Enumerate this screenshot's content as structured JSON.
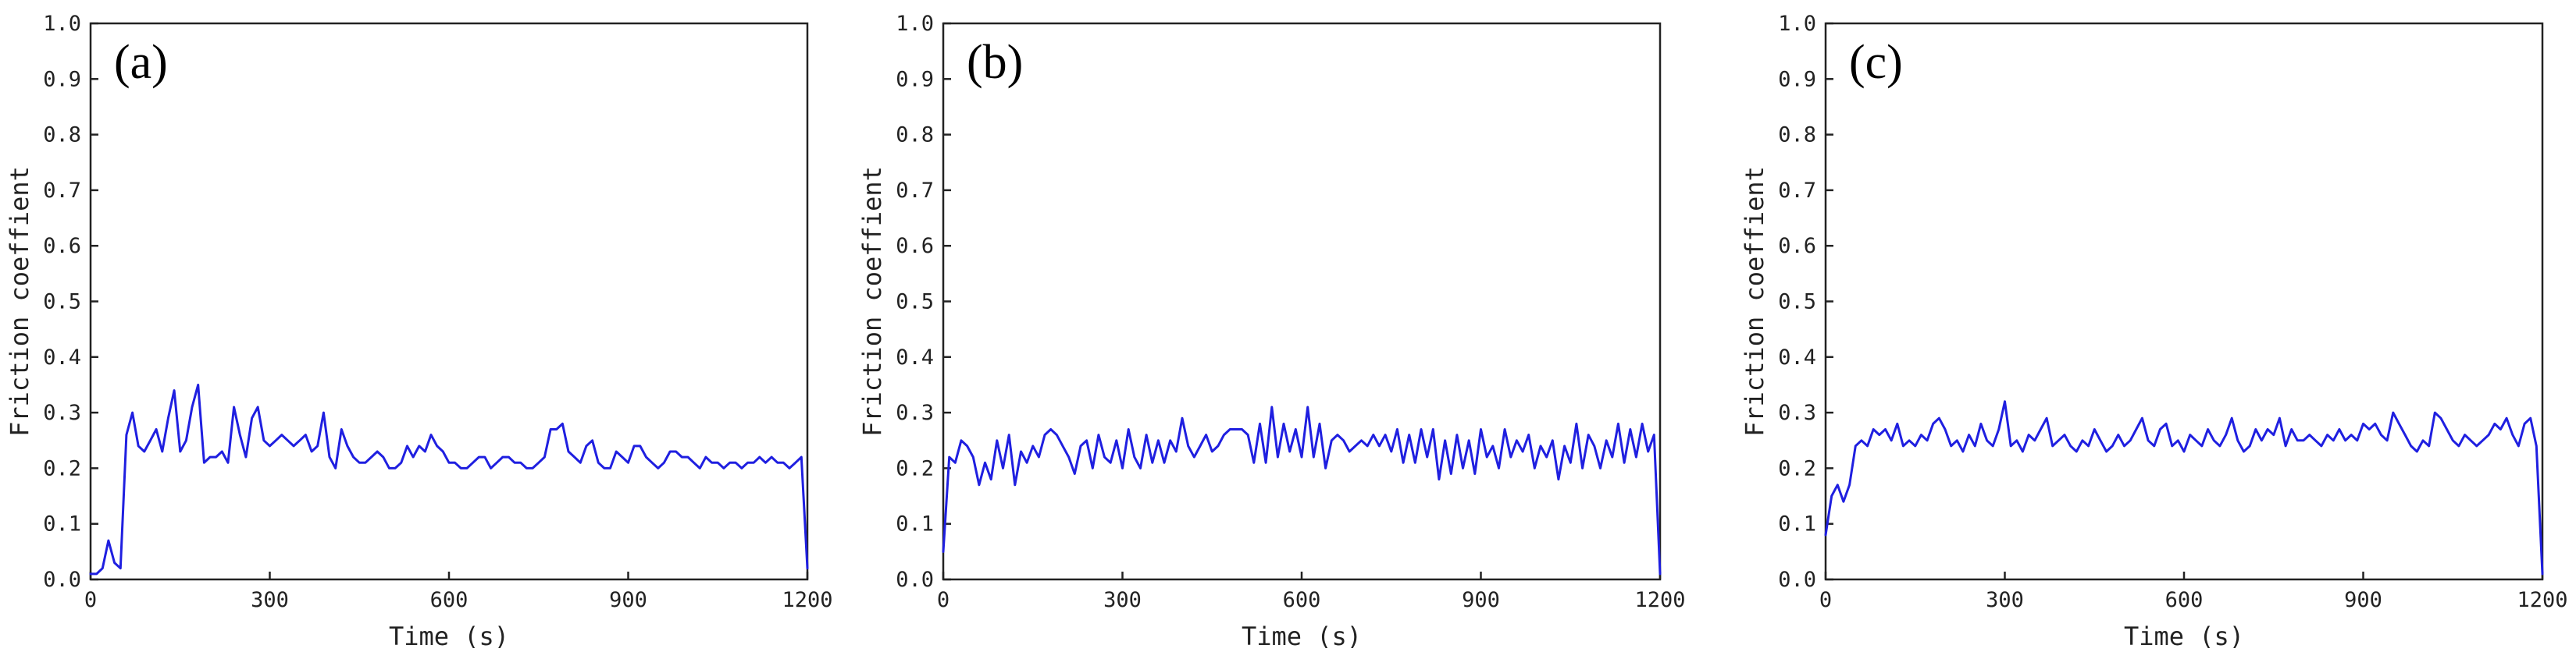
{
  "figure": {
    "line_color": "#1f1fe0",
    "axis_color": "#222222"
  },
  "chart_data": [
    {
      "type": "line",
      "panel_label": "(a)",
      "xlabel": "Time (s)",
      "ylabel": "Friction coeffient",
      "xlim": [
        0,
        1200
      ],
      "ylim": [
        0,
        1.0
      ],
      "x_ticks": [
        0,
        300,
        600,
        900,
        1200
      ],
      "y_ticks": [
        0.0,
        0.1,
        0.2,
        0.3,
        0.4,
        0.5,
        0.6,
        0.7,
        0.8,
        0.9,
        1.0
      ],
      "grid": false,
      "series": [
        {
          "x": [
            0,
            10,
            20,
            30,
            40,
            50,
            60,
            70,
            80,
            90,
            100,
            110,
            120,
            130,
            140,
            150,
            160,
            170,
            180,
            190,
            200,
            210,
            220,
            230,
            240,
            250,
            260,
            270,
            280,
            290,
            300,
            310,
            320,
            330,
            340,
            350,
            360,
            370,
            380,
            390,
            400,
            410,
            420,
            430,
            440,
            450,
            460,
            470,
            480,
            490,
            500,
            510,
            520,
            530,
            540,
            550,
            560,
            570,
            580,
            590,
            600,
            610,
            620,
            630,
            640,
            650,
            660,
            670,
            680,
            690,
            700,
            710,
            720,
            730,
            740,
            750,
            760,
            770,
            780,
            790,
            800,
            810,
            820,
            830,
            840,
            850,
            860,
            870,
            880,
            890,
            900,
            910,
            920,
            930,
            940,
            950,
            960,
            970,
            980,
            990,
            1000,
            1010,
            1020,
            1030,
            1040,
            1050,
            1060,
            1070,
            1080,
            1090,
            1100,
            1110,
            1120,
            1130,
            1140,
            1150,
            1160,
            1170,
            1180,
            1190,
            1200
          ],
          "y": [
            0.01,
            0.01,
            0.02,
            0.07,
            0.03,
            0.02,
            0.26,
            0.3,
            0.24,
            0.23,
            0.25,
            0.27,
            0.23,
            0.29,
            0.34,
            0.23,
            0.25,
            0.31,
            0.35,
            0.21,
            0.22,
            0.22,
            0.23,
            0.21,
            0.31,
            0.26,
            0.22,
            0.29,
            0.31,
            0.25,
            0.24,
            0.25,
            0.26,
            0.25,
            0.24,
            0.25,
            0.26,
            0.23,
            0.24,
            0.3,
            0.22,
            0.2,
            0.27,
            0.24,
            0.22,
            0.21,
            0.21,
            0.22,
            0.23,
            0.22,
            0.2,
            0.2,
            0.21,
            0.24,
            0.22,
            0.24,
            0.23,
            0.26,
            0.24,
            0.23,
            0.21,
            0.21,
            0.2,
            0.2,
            0.21,
            0.22,
            0.22,
            0.2,
            0.21,
            0.22,
            0.22,
            0.21,
            0.21,
            0.2,
            0.2,
            0.21,
            0.22,
            0.27,
            0.27,
            0.28,
            0.23,
            0.22,
            0.21,
            0.24,
            0.25,
            0.21,
            0.2,
            0.2,
            0.23,
            0.22,
            0.21,
            0.24,
            0.24,
            0.22,
            0.21,
            0.2,
            0.21,
            0.23,
            0.23,
            0.22,
            0.22,
            0.21,
            0.2,
            0.22,
            0.21,
            0.21,
            0.2,
            0.21,
            0.21,
            0.2,
            0.21,
            0.21,
            0.22,
            0.21,
            0.22,
            0.21,
            0.21,
            0.2,
            0.21,
            0.22,
            0.02
          ]
        }
      ]
    },
    {
      "type": "line",
      "panel_label": "(b)",
      "xlabel": "Time (s)",
      "ylabel": "Friction coeffient",
      "xlim": [
        0,
        1200
      ],
      "ylim": [
        0,
        1.0
      ],
      "x_ticks": [
        0,
        300,
        600,
        900,
        1200
      ],
      "y_ticks": [
        0.0,
        0.1,
        0.2,
        0.3,
        0.4,
        0.5,
        0.6,
        0.7,
        0.8,
        0.9,
        1.0
      ],
      "grid": false,
      "series": [
        {
          "x": [
            0,
            10,
            20,
            30,
            40,
            50,
            60,
            70,
            80,
            90,
            100,
            110,
            120,
            130,
            140,
            150,
            160,
            170,
            180,
            190,
            200,
            210,
            220,
            230,
            240,
            250,
            260,
            270,
            280,
            290,
            300,
            310,
            320,
            330,
            340,
            350,
            360,
            370,
            380,
            390,
            400,
            410,
            420,
            430,
            440,
            450,
            460,
            470,
            480,
            490,
            500,
            510,
            520,
            530,
            540,
            550,
            560,
            570,
            580,
            590,
            600,
            610,
            620,
            630,
            640,
            650,
            660,
            670,
            680,
            690,
            700,
            710,
            720,
            730,
            740,
            750,
            760,
            770,
            780,
            790,
            800,
            810,
            820,
            830,
            840,
            850,
            860,
            870,
            880,
            890,
            900,
            910,
            920,
            930,
            940,
            950,
            960,
            970,
            980,
            990,
            1000,
            1010,
            1020,
            1030,
            1040,
            1050,
            1060,
            1070,
            1080,
            1090,
            1100,
            1110,
            1120,
            1130,
            1140,
            1150,
            1160,
            1170,
            1180,
            1190,
            1200
          ],
          "y": [
            0.05,
            0.22,
            0.21,
            0.25,
            0.24,
            0.22,
            0.17,
            0.21,
            0.18,
            0.25,
            0.2,
            0.26,
            0.17,
            0.23,
            0.21,
            0.24,
            0.22,
            0.26,
            0.27,
            0.26,
            0.24,
            0.22,
            0.19,
            0.24,
            0.25,
            0.2,
            0.26,
            0.22,
            0.21,
            0.25,
            0.2,
            0.27,
            0.22,
            0.2,
            0.26,
            0.21,
            0.25,
            0.21,
            0.25,
            0.23,
            0.29,
            0.24,
            0.22,
            0.24,
            0.26,
            0.23,
            0.24,
            0.26,
            0.27,
            0.27,
            0.27,
            0.26,
            0.21,
            0.28,
            0.21,
            0.31,
            0.22,
            0.28,
            0.23,
            0.27,
            0.22,
            0.31,
            0.22,
            0.28,
            0.2,
            0.25,
            0.26,
            0.25,
            0.23,
            0.24,
            0.25,
            0.24,
            0.26,
            0.24,
            0.26,
            0.23,
            0.27,
            0.21,
            0.26,
            0.21,
            0.27,
            0.22,
            0.27,
            0.18,
            0.25,
            0.19,
            0.26,
            0.2,
            0.25,
            0.19,
            0.27,
            0.22,
            0.24,
            0.2,
            0.27,
            0.22,
            0.25,
            0.23,
            0.26,
            0.2,
            0.24,
            0.22,
            0.25,
            0.18,
            0.24,
            0.21,
            0.28,
            0.2,
            0.26,
            0.24,
            0.2,
            0.25,
            0.22,
            0.28,
            0.21,
            0.27,
            0.22,
            0.28,
            0.23,
            0.26,
            0.01
          ]
        }
      ]
    },
    {
      "type": "line",
      "panel_label": "(c)",
      "xlabel": "Time (s)",
      "ylabel": "Friction coeffient",
      "xlim": [
        0,
        1200
      ],
      "ylim": [
        0,
        1.0
      ],
      "x_ticks": [
        0,
        300,
        600,
        900,
        1200
      ],
      "y_ticks": [
        0.0,
        0.1,
        0.2,
        0.3,
        0.4,
        0.5,
        0.6,
        0.7,
        0.8,
        0.9,
        1.0
      ],
      "grid": false,
      "series": [
        {
          "x": [
            0,
            10,
            20,
            30,
            40,
            50,
            60,
            70,
            80,
            90,
            100,
            110,
            120,
            130,
            140,
            150,
            160,
            170,
            180,
            190,
            200,
            210,
            220,
            230,
            240,
            250,
            260,
            270,
            280,
            290,
            300,
            310,
            320,
            330,
            340,
            350,
            360,
            370,
            380,
            390,
            400,
            410,
            420,
            430,
            440,
            450,
            460,
            470,
            480,
            490,
            500,
            510,
            520,
            530,
            540,
            550,
            560,
            570,
            580,
            590,
            600,
            610,
            620,
            630,
            640,
            650,
            660,
            670,
            680,
            690,
            700,
            710,
            720,
            730,
            740,
            750,
            760,
            770,
            780,
            790,
            800,
            810,
            820,
            830,
            840,
            850,
            860,
            870,
            880,
            890,
            900,
            910,
            920,
            930,
            940,
            950,
            960,
            970,
            980,
            990,
            1000,
            1010,
            1020,
            1030,
            1040,
            1050,
            1060,
            1070,
            1080,
            1090,
            1100,
            1110,
            1120,
            1130,
            1140,
            1150,
            1160,
            1170,
            1180,
            1190,
            1200
          ],
          "y": [
            0.08,
            0.15,
            0.17,
            0.14,
            0.17,
            0.24,
            0.25,
            0.24,
            0.27,
            0.26,
            0.27,
            0.25,
            0.28,
            0.24,
            0.25,
            0.24,
            0.26,
            0.25,
            0.28,
            0.29,
            0.27,
            0.24,
            0.25,
            0.23,
            0.26,
            0.24,
            0.28,
            0.25,
            0.24,
            0.27,
            0.32,
            0.24,
            0.25,
            0.23,
            0.26,
            0.25,
            0.27,
            0.29,
            0.24,
            0.25,
            0.26,
            0.24,
            0.23,
            0.25,
            0.24,
            0.27,
            0.25,
            0.23,
            0.24,
            0.26,
            0.24,
            0.25,
            0.27,
            0.29,
            0.25,
            0.24,
            0.27,
            0.28,
            0.24,
            0.25,
            0.23,
            0.26,
            0.25,
            0.24,
            0.27,
            0.25,
            0.24,
            0.26,
            0.29,
            0.25,
            0.23,
            0.24,
            0.27,
            0.25,
            0.27,
            0.26,
            0.29,
            0.24,
            0.27,
            0.25,
            0.25,
            0.26,
            0.25,
            0.24,
            0.26,
            0.25,
            0.27,
            0.25,
            0.26,
            0.25,
            0.28,
            0.27,
            0.28,
            0.26,
            0.25,
            0.3,
            0.28,
            0.26,
            0.24,
            0.23,
            0.25,
            0.24,
            0.3,
            0.29,
            0.27,
            0.25,
            0.24,
            0.26,
            0.25,
            0.24,
            0.25,
            0.26,
            0.28,
            0.27,
            0.29,
            0.26,
            0.24,
            0.28,
            0.29,
            0.24,
            0.01
          ]
        }
      ]
    }
  ]
}
